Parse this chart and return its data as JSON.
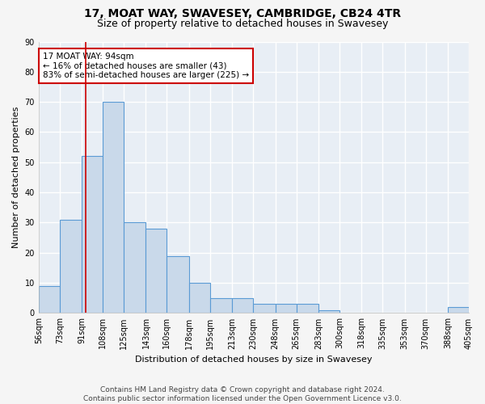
{
  "title": "17, MOAT WAY, SWAVESEY, CAMBRIDGE, CB24 4TR",
  "subtitle": "Size of property relative to detached houses in Swavesey",
  "xlabel": "Distribution of detached houses by size in Swavesey",
  "ylabel": "Number of detached properties",
  "bin_edges": [
    56,
    73,
    91,
    108,
    125,
    143,
    160,
    178,
    195,
    213,
    230,
    248,
    265,
    283,
    300,
    318,
    335,
    353,
    370,
    388,
    405
  ],
  "bar_heights": [
    9,
    31,
    52,
    70,
    30,
    28,
    19,
    10,
    5,
    5,
    3,
    3,
    3,
    1,
    0,
    0,
    0,
    0,
    0,
    2
  ],
  "bar_color": "#c9d9ea",
  "bar_edgecolor": "#5b9bd5",
  "background_color": "#e8eef5",
  "grid_color": "#ffffff",
  "property_size": 94,
  "annotation_text": "17 MOAT WAY: 94sqm\n← 16% of detached houses are smaller (43)\n83% of semi-detached houses are larger (225) →",
  "annotation_box_color": "#ffffff",
  "annotation_box_edgecolor": "#cc0000",
  "vline_color": "#cc0000",
  "footer_text": "Contains HM Land Registry data © Crown copyright and database right 2024.\nContains public sector information licensed under the Open Government Licence v3.0.",
  "ylim": [
    0,
    90
  ],
  "yticks": [
    0,
    10,
    20,
    30,
    40,
    50,
    60,
    70,
    80,
    90
  ],
  "title_fontsize": 10,
  "subtitle_fontsize": 9,
  "axis_label_fontsize": 8,
  "tick_fontsize": 7,
  "annotation_fontsize": 7.5,
  "footer_fontsize": 6.5
}
